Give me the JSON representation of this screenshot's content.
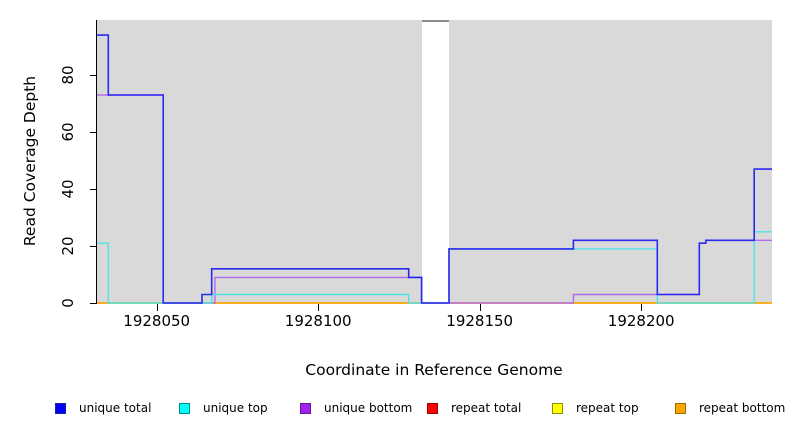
{
  "figure": {
    "background": "#FFFFFF",
    "plot_background": "#D9D9D9"
  },
  "chart_data": {
    "type": "line",
    "subtype": "step-coverage-plot",
    "title": "",
    "xlabel": "Coordinate in Reference Genome",
    "ylabel": "Read Coverage Depth",
    "xlim": [
      1928031.5,
      1928240.5
    ],
    "ylim": [
      0,
      99.3
    ],
    "x_ticks": [
      "1928050",
      "1928100",
      "1928150",
      "1928200"
    ],
    "x_tick_values": [
      1928050,
      1928100,
      1928150,
      1928200
    ],
    "y_ticks": [
      "0",
      "20",
      "40",
      "60",
      "80"
    ],
    "y_tick_values": [
      0,
      20,
      40,
      60,
      80
    ],
    "grid": false,
    "gap_regions": [
      {
        "from": 1928132,
        "to": 1928140.5
      }
    ],
    "series": [
      {
        "name": "repeat total",
        "color": "#E02020",
        "width": 1.2,
        "end": 1928240.5,
        "steps": [
          [
            1928031.5,
            0
          ]
        ]
      },
      {
        "name": "repeat top",
        "color": "#FFFF00",
        "width": 1.2,
        "end": 1928240.5,
        "steps": [
          [
            1928031.5,
            0
          ]
        ]
      },
      {
        "name": "repeat bottom",
        "color": "#FFA500",
        "width": 1.4,
        "end": 1928240.5,
        "steps": [
          [
            1928031.5,
            0
          ]
        ]
      },
      {
        "name": "unique bottom",
        "color": "#B06CE8",
        "width": 1.4,
        "end": 1928240.5,
        "steps": [
          [
            1928031.5,
            73
          ],
          [
            1928052,
            0
          ],
          [
            1928068,
            9
          ],
          [
            1928132,
            0
          ],
          [
            1928179,
            3
          ],
          [
            1928218,
            21
          ],
          [
            1928220,
            22
          ]
        ]
      },
      {
        "name": "unique top",
        "color": "#4FE3E8",
        "width": 1.4,
        "end": 1928240.5,
        "steps": [
          [
            1928031.5,
            21
          ],
          [
            1928035,
            0
          ],
          [
            1928067,
            3
          ],
          [
            1928128,
            0
          ],
          [
            1928140.5,
            19
          ],
          [
            1928205,
            0
          ],
          [
            1928235,
            25
          ]
        ]
      },
      {
        "name": "unique total",
        "color": "#2A2AEF",
        "width": 1.6,
        "end": 1928240.5,
        "steps": [
          [
            1928031.5,
            94
          ],
          [
            1928035,
            73
          ],
          [
            1928052,
            0
          ],
          [
            1928064,
            3
          ],
          [
            1928067,
            12
          ],
          [
            1928128,
            9
          ],
          [
            1928132,
            0
          ],
          [
            1928140.5,
            19
          ],
          [
            1928179,
            22
          ],
          [
            1928205,
            3
          ],
          [
            1928218,
            21
          ],
          [
            1928220,
            22
          ],
          [
            1928235,
            47
          ]
        ]
      }
    ],
    "legend_position": "bottom"
  },
  "legend": {
    "items": [
      {
        "label": "unique total",
        "color": "#0000FF",
        "border": "#2020A0"
      },
      {
        "label": "unique top",
        "color": "#00FFFF",
        "border": "#00898F"
      },
      {
        "label": "unique bottom",
        "color": "#A020F0",
        "border": "#6A14A0"
      },
      {
        "label": "repeat total",
        "color": "#FF0000",
        "border": "#A00000"
      },
      {
        "label": "repeat top",
        "color": "#FFFF00",
        "border": "#909000"
      },
      {
        "label": "repeat bottom",
        "color": "#FFA500",
        "border": "#A06A00"
      }
    ]
  }
}
